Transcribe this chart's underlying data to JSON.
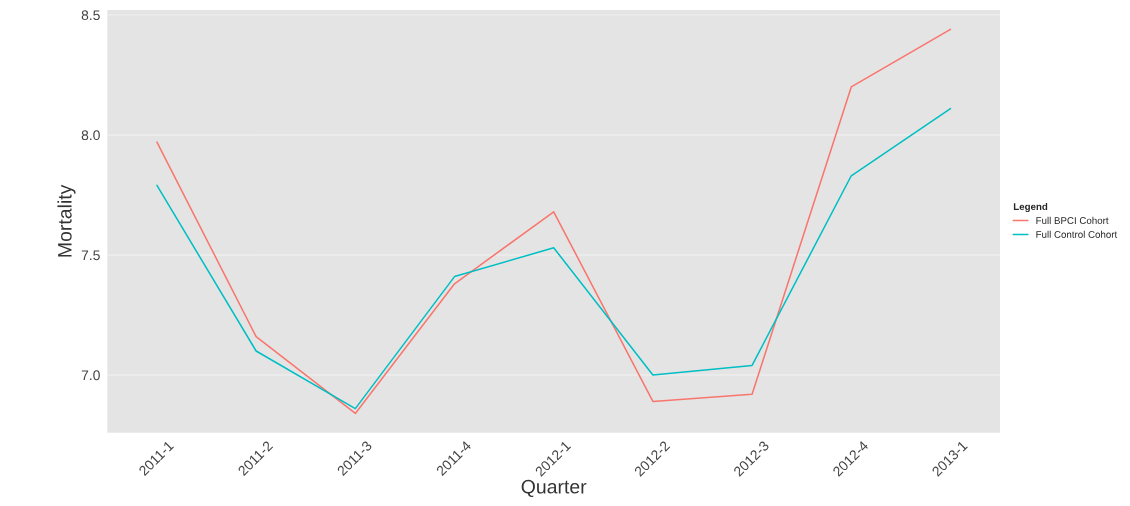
{
  "chart_data": {
    "type": "line",
    "xlabel": "Quarter",
    "ylabel": "Mortality",
    "legend_title": "Legend",
    "categories": [
      "2011-1",
      "2011-2",
      "2011-3",
      "2011-4",
      "2012-1",
      "2012-2",
      "2012-3",
      "2012-4",
      "2013-1"
    ],
    "series": [
      {
        "name": "Full BPCI Cohort",
        "color": "#f8766d",
        "values": [
          7.97,
          7.16,
          6.84,
          7.38,
          7.68,
          6.89,
          6.92,
          8.2,
          8.44
        ]
      },
      {
        "name": "Full Control Cohort",
        "color": "#00bfc4",
        "values": [
          7.79,
          7.1,
          6.86,
          7.41,
          7.53,
          7.0,
          7.04,
          7.83,
          8.11
        ]
      }
    ],
    "ylim": [
      6.76,
      8.52
    ],
    "yticks": [
      {
        "value": 7,
        "label": "7.0"
      },
      7.5,
      {
        "value": 8,
        "label": "8.0"
      },
      8.5
    ],
    "grid": "y",
    "legend": "right",
    "marker": "none",
    "line_style": "solid"
  }
}
